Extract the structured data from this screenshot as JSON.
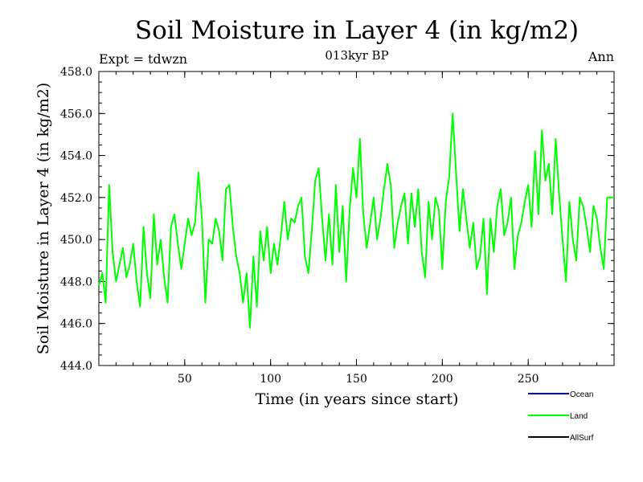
{
  "chart_data": {
    "type": "line",
    "title": "Soil Moisture in Layer 4 (in kg/m2)",
    "subtitle": "013kyr BP",
    "left_label": "Expt = tdwzn",
    "right_label": "Ann",
    "xlabel": "Time (in years since start)",
    "ylabel": "Soil Moisture in Layer 4 (in kg/m2)",
    "xlim": [
      0,
      300
    ],
    "ylim": [
      444.0,
      458.0
    ],
    "x_ticks": [
      50,
      100,
      150,
      200,
      250
    ],
    "x_tick_labels": [
      "50",
      "100",
      "150",
      "200",
      "250"
    ],
    "y_ticks": [
      444.0,
      446.0,
      448.0,
      450.0,
      452.0,
      454.0,
      456.0,
      458.0
    ],
    "y_tick_labels": [
      "444.0",
      "446.0",
      "448.0",
      "450.0",
      "452.0",
      "454.0",
      "456.0",
      "458.0"
    ],
    "legend_position": "bottom-right, below plot",
    "legend": [
      {
        "name": "Ocean",
        "color": "#0000cc"
      },
      {
        "name": "Land",
        "color": "#00ff00"
      },
      {
        "name": "AllSurf",
        "color": "#000000"
      }
    ],
    "series": [
      {
        "name": "Land",
        "color": "#00ff00",
        "x": [
          0,
          2,
          4,
          6,
          8,
          10,
          12,
          14,
          16,
          18,
          20,
          22,
          24,
          26,
          28,
          30,
          32,
          34,
          36,
          38,
          40,
          42,
          44,
          46,
          48,
          50,
          52,
          54,
          56,
          58,
          60,
          62,
          64,
          66,
          68,
          70,
          72,
          74,
          76,
          78,
          80,
          82,
          84,
          86,
          88,
          90,
          92,
          94,
          96,
          98,
          100,
          102,
          104,
          106,
          108,
          110,
          112,
          114,
          116,
          118,
          120,
          122,
          124,
          126,
          128,
          130,
          132,
          134,
          136,
          138,
          140,
          142,
          144,
          146,
          148,
          150,
          152,
          154,
          156,
          158,
          160,
          162,
          164,
          166,
          168,
          170,
          172,
          174,
          176,
          178,
          180,
          182,
          184,
          186,
          188,
          190,
          192,
          194,
          196,
          198,
          200,
          202,
          204,
          206,
          208,
          210,
          212,
          214,
          216,
          218,
          220,
          222,
          224,
          226,
          228,
          230,
          232,
          234,
          236,
          238,
          240,
          242,
          244,
          246,
          248,
          250,
          252,
          254,
          256,
          258,
          260,
          262,
          264,
          266,
          268,
          270,
          272,
          274,
          276,
          278,
          280,
          282,
          284,
          286,
          288,
          290,
          292,
          294,
          296,
          298,
          300
        ],
        "values": [
          447.8,
          448.4,
          447.0,
          452.6,
          449.4,
          448.0,
          448.8,
          449.6,
          448.2,
          448.8,
          449.8,
          448.0,
          446.8,
          450.6,
          448.4,
          447.2,
          451.2,
          448.8,
          450.0,
          448.2,
          447.0,
          450.6,
          451.2,
          449.8,
          448.6,
          449.8,
          451.0,
          450.2,
          450.8,
          453.2,
          451.0,
          447.0,
          450.0,
          449.8,
          451.0,
          450.4,
          449.0,
          452.4,
          452.6,
          450.6,
          449.2,
          448.4,
          447.0,
          448.4,
          445.8,
          449.2,
          446.8,
          450.4,
          449.0,
          450.6,
          448.4,
          449.8,
          448.8,
          450.2,
          451.8,
          450.0,
          451.0,
          450.8,
          451.6,
          452.0,
          449.2,
          448.4,
          450.4,
          452.8,
          453.4,
          451.0,
          449.0,
          451.2,
          448.8,
          452.6,
          449.4,
          451.6,
          448.0,
          451.4,
          453.4,
          452.0,
          454.8,
          451.2,
          449.6,
          450.8,
          452.0,
          450.0,
          451.0,
          452.4,
          453.6,
          452.6,
          449.6,
          450.8,
          451.6,
          452.2,
          449.8,
          452.2,
          450.6,
          452.4,
          449.4,
          448.2,
          451.8,
          450.0,
          452.0,
          451.4,
          448.6,
          451.8,
          453.0,
          456.0,
          453.2,
          450.4,
          452.4,
          451.0,
          449.6,
          450.8,
          448.6,
          449.2,
          451.0,
          447.4,
          451.0,
          449.4,
          451.6,
          452.4,
          450.2,
          450.8,
          452.0,
          448.6,
          450.2,
          450.8,
          451.8,
          452.6,
          450.6,
          454.2,
          451.2,
          455.2,
          452.8,
          453.6,
          451.2,
          454.8,
          452.2,
          450.0,
          448.0,
          451.8,
          450.0,
          449.0,
          452.0,
          451.6,
          450.6,
          449.4,
          451.6,
          451.0,
          449.6,
          448.6,
          452.0,
          452.0,
          452.0
        ]
      }
    ]
  }
}
